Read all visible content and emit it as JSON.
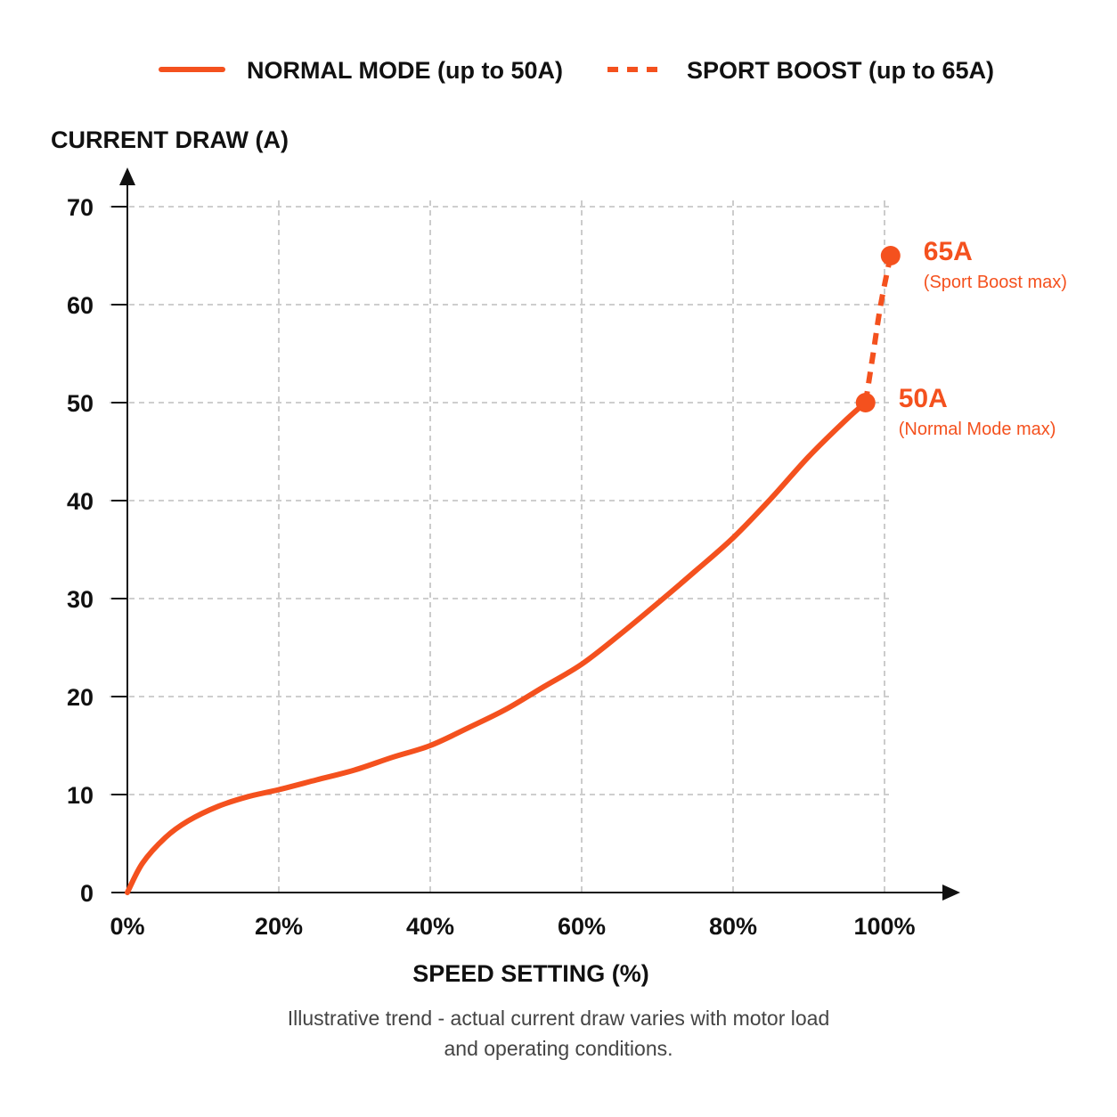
{
  "legend": {
    "normal_label": "NORMAL MODE (up to 50A)",
    "sport_label": "SPORT BOOST (up to 65A)"
  },
  "chart_data": {
    "type": "line",
    "ylabel": "CURRENT DRAW (A)",
    "xlabel": "SPEED SETTING (%)",
    "xlim": [
      0,
      100
    ],
    "ylim": [
      0,
      70
    ],
    "x_ticks": [
      0,
      20,
      40,
      60,
      80,
      100
    ],
    "x_tick_labels": [
      "0%",
      "20%",
      "40%",
      "60%",
      "80%",
      "100%"
    ],
    "y_ticks": [
      0,
      10,
      20,
      30,
      40,
      50,
      60,
      70
    ],
    "y_tick_labels": [
      "0",
      "10",
      "20",
      "30",
      "40",
      "50",
      "60",
      "70"
    ],
    "grid": true,
    "legend_position": "top",
    "series": [
      {
        "name": "NORMAL MODE (up to 50A)",
        "style": "solid",
        "color": "#f4511e",
        "x": [
          0,
          2,
          5,
          8,
          12,
          16,
          20,
          25,
          30,
          35,
          40,
          45,
          50,
          55,
          60,
          65,
          70,
          75,
          80,
          85,
          90,
          95,
          97.5
        ],
        "y": [
          0,
          3,
          5.6,
          7.3,
          8.8,
          9.8,
          10.5,
          11.5,
          12.5,
          13.8,
          15,
          16.8,
          18.7,
          21,
          23.3,
          26.3,
          29.5,
          32.8,
          36.2,
          40.2,
          44.5,
          48.3,
          50
        ]
      },
      {
        "name": "SPORT BOOST (up to 65A)",
        "style": "dashed",
        "color": "#f4511e",
        "x": [
          97.5,
          98.5,
          99.5,
          100.8
        ],
        "y": [
          50,
          55,
          60,
          65
        ]
      }
    ],
    "annotations": [
      {
        "x": 100.8,
        "y": 65,
        "value": "65A",
        "text": "(Sport Boost max)"
      },
      {
        "x": 97.5,
        "y": 50,
        "value": "50A",
        "text": "(Normal Mode max)"
      }
    ]
  },
  "note": {
    "line1": "Illustrative trend - actual current draw varies with motor load",
    "line2": "and operating conditions."
  },
  "colors": {
    "accent": "#f4511e",
    "grid": "#b0b0b0",
    "axis": "#111111"
  }
}
